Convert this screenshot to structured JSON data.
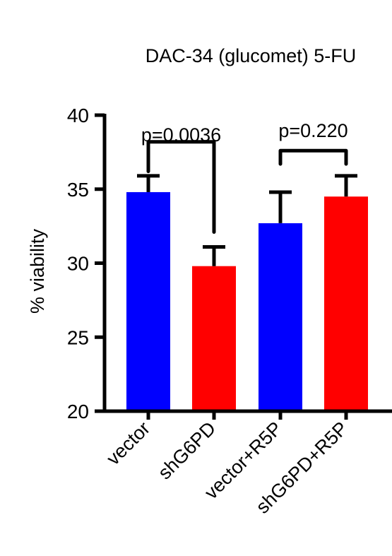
{
  "chart_data": {
    "type": "bar",
    "title": "DAC-34 (glucomet) 5-FU",
    "xlabel": "",
    "ylabel": "% viability",
    "ylim": [
      20,
      40
    ],
    "yticks": [
      "20",
      "25",
      "30",
      "35",
      "40"
    ],
    "grid": false,
    "categories": [
      "vector",
      "shG6PD",
      "vector+R5P",
      "shG6PD+R5P"
    ],
    "values": [
      34.8,
      29.8,
      32.7,
      34.5
    ],
    "errors": [
      1.1,
      1.3,
      2.1,
      1.4
    ],
    "colors": [
      "#0000ff",
      "#ff0000",
      "#0000ff",
      "#ff0000"
    ],
    "annotations": [
      {
        "label": "p=0.0036",
        "from": 0,
        "to": 1
      },
      {
        "label": "p=0.220",
        "from": 2,
        "to": 3
      }
    ]
  }
}
